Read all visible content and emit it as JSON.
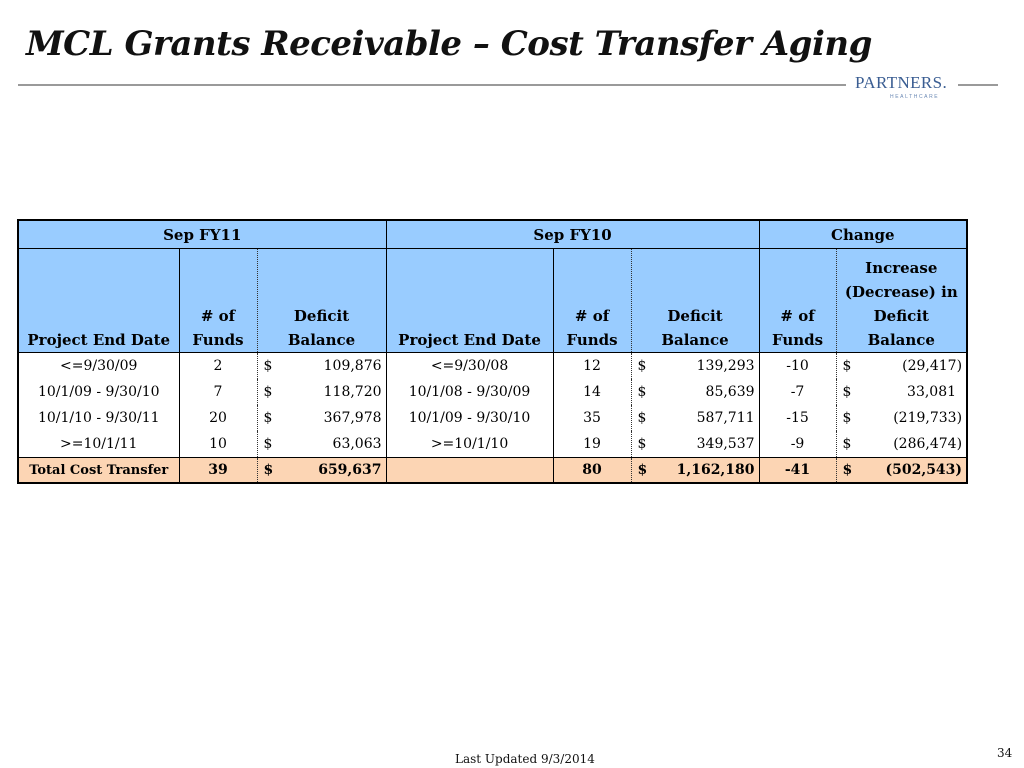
{
  "slide": {
    "title": "MCL Grants Receivable – Cost Transfer Aging",
    "footer": "Last Updated 9/3/2014",
    "page_number": "34"
  },
  "logo": {
    "text": "PARTNERS.",
    "subtext": "HEALTHCARE",
    "color": "#3a5d92"
  },
  "table": {
    "groups": {
      "fy11": "Sep FY11",
      "fy10": "Sep FY10",
      "change": "Change"
    },
    "columns": {
      "fy11_date": "Project End Date",
      "fy11_funds": "# of Funds",
      "fy11_balance": "Deficit Balance",
      "fy10_date": "Project End Date",
      "fy10_funds": "# of Funds",
      "fy10_balance": "Deficit Balance",
      "chg_funds": "# of Funds",
      "chg_balance": "Increase (Decrease) in Deficit Balance"
    },
    "currency_symbol": "$",
    "rows": [
      {
        "fy11_date": "<=9/30/09",
        "fy11_funds": "2",
        "fy11_balance": "109,876",
        "fy10_date": "<=9/30/08",
        "fy10_funds": "12",
        "fy10_balance": "139,293",
        "chg_funds": "-10",
        "chg_balance": "(29,417)"
      },
      {
        "fy11_date": "10/1/09 - 9/30/10",
        "fy11_funds": "7",
        "fy11_balance": "118,720",
        "fy10_date": "10/1/08 - 9/30/09",
        "fy10_funds": "14",
        "fy10_balance": "85,639",
        "chg_funds": "-7",
        "chg_balance": "33,081"
      },
      {
        "fy11_date": "10/1/10 - 9/30/11",
        "fy11_funds": "20",
        "fy11_balance": "367,978",
        "fy10_date": "10/1/09 - 9/30/10",
        "fy10_funds": "35",
        "fy10_balance": "587,711",
        "chg_funds": "-15",
        "chg_balance": "(219,733)"
      },
      {
        "fy11_date": ">=10/1/11",
        "fy11_funds": "10",
        "fy11_balance": "63,063",
        "fy10_date": ">=10/1/10",
        "fy10_funds": "19",
        "fy10_balance": "349,537",
        "chg_funds": "-9",
        "chg_balance": "(286,474)"
      }
    ],
    "total": {
      "label": "Total Cost Transfer",
      "fy11_funds": "39",
      "fy11_balance": "659,637",
      "fy10_funds": "80",
      "fy10_balance": "1,162,180",
      "chg_funds": "-41",
      "chg_balance": "(502,543)"
    }
  },
  "colors": {
    "header_fill": "#99ccff",
    "total_fill": "#fcd5b4",
    "rule": "#9a9a9a"
  }
}
